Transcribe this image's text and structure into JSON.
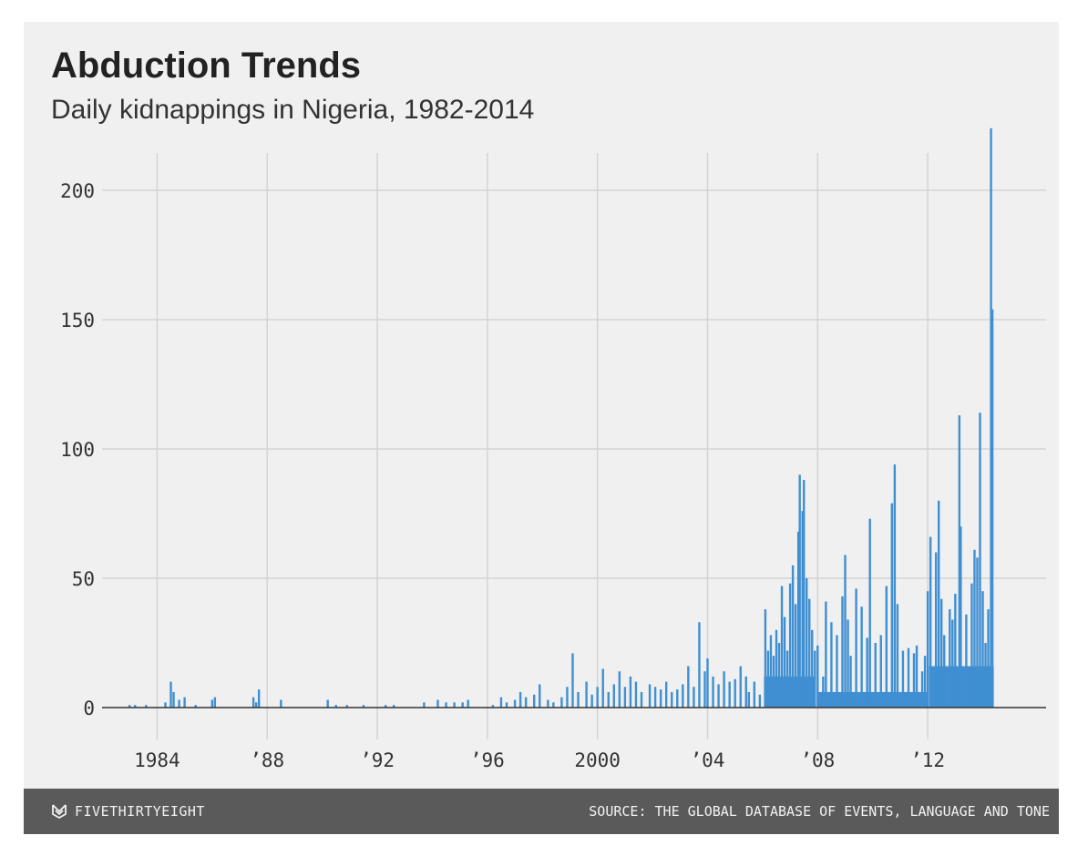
{
  "footer": {
    "brand": "FIVETHIRTYEIGHT",
    "brand_icon": "fivethirtyeight-logo-icon",
    "source": "SOURCE: THE GLOBAL DATABASE OF EVENTS, LANGUAGE AND TONE"
  },
  "colors": {
    "background": "#f0f0f0",
    "bar": "#3f8fd2",
    "grid": "#d4d4d4",
    "footer": "#5a5a5a"
  },
  "chart_data": {
    "type": "bar",
    "title": "Abduction Trends",
    "subtitle": "Daily kidnappings in Nigeria, 1982-2014",
    "xlabel": "",
    "ylabel": "",
    "xlim": [
      1982.0,
      2016.3
    ],
    "ylim": [
      0,
      220
    ],
    "grid": true,
    "x_ticks": [
      1984,
      1988,
      1992,
      1996,
      2000,
      2004,
      2008,
      2012
    ],
    "x_tick_labels": [
      "1984",
      "’88",
      "’92",
      "’96",
      "2000",
      "’04",
      "’08",
      "’12"
    ],
    "y_ticks": [
      0,
      50,
      100,
      150,
      200
    ],
    "y_tick_labels": [
      "0",
      "50",
      "100",
      "150",
      "200"
    ],
    "series": [
      {
        "values": [
          [
            1983.0,
            1
          ],
          [
            1983.2,
            1
          ],
          [
            1983.6,
            1
          ],
          [
            1984.3,
            2
          ],
          [
            1984.5,
            10
          ],
          [
            1984.6,
            6
          ],
          [
            1984.8,
            3
          ],
          [
            1985.0,
            4
          ],
          [
            1985.4,
            1
          ],
          [
            1986.0,
            3
          ],
          [
            1986.1,
            4
          ],
          [
            1987.5,
            4
          ],
          [
            1987.6,
            2
          ],
          [
            1987.7,
            7
          ],
          [
            1988.5,
            3
          ],
          [
            1990.2,
            3
          ],
          [
            1990.5,
            1
          ],
          [
            1990.9,
            1
          ],
          [
            1991.5,
            1
          ],
          [
            1992.3,
            1
          ],
          [
            1992.6,
            1
          ],
          [
            1993.7,
            2
          ],
          [
            1994.2,
            3
          ],
          [
            1994.5,
            2
          ],
          [
            1994.8,
            2
          ],
          [
            1995.1,
            2
          ],
          [
            1995.3,
            3
          ],
          [
            1996.2,
            1
          ],
          [
            1996.5,
            4
          ],
          [
            1996.7,
            2
          ],
          [
            1997.0,
            3
          ],
          [
            1997.2,
            6
          ],
          [
            1997.4,
            4
          ],
          [
            1997.7,
            5
          ],
          [
            1997.9,
            9
          ],
          [
            1998.2,
            3
          ],
          [
            1998.4,
            2
          ],
          [
            1998.7,
            4
          ],
          [
            1998.9,
            8
          ],
          [
            1999.1,
            21
          ],
          [
            1999.3,
            6
          ],
          [
            1999.6,
            10
          ],
          [
            1999.8,
            5
          ],
          [
            2000.0,
            8
          ],
          [
            2000.2,
            15
          ],
          [
            2000.4,
            6
          ],
          [
            2000.6,
            9
          ],
          [
            2000.8,
            14
          ],
          [
            2001.0,
            8
          ],
          [
            2001.2,
            12
          ],
          [
            2001.4,
            10
          ],
          [
            2001.6,
            6
          ],
          [
            2001.9,
            9
          ],
          [
            2002.1,
            8
          ],
          [
            2002.3,
            7
          ],
          [
            2002.5,
            10
          ],
          [
            2002.7,
            6
          ],
          [
            2002.9,
            7
          ],
          [
            2003.1,
            9
          ],
          [
            2003.3,
            16
          ],
          [
            2003.5,
            8
          ],
          [
            2003.7,
            33
          ],
          [
            2003.9,
            14
          ],
          [
            2004.0,
            19
          ],
          [
            2004.2,
            12
          ],
          [
            2004.4,
            9
          ],
          [
            2004.6,
            14
          ],
          [
            2004.8,
            10
          ],
          [
            2005.0,
            11
          ],
          [
            2005.2,
            16
          ],
          [
            2005.4,
            12
          ],
          [
            2005.5,
            6
          ],
          [
            2005.7,
            10
          ],
          [
            2005.9,
            5
          ],
          [
            2006.1,
            38
          ],
          [
            2006.2,
            22
          ],
          [
            2006.3,
            28
          ],
          [
            2006.4,
            20
          ],
          [
            2006.5,
            30
          ],
          [
            2006.6,
            25
          ],
          [
            2006.7,
            47
          ],
          [
            2006.8,
            35
          ],
          [
            2006.9,
            22
          ],
          [
            2007.0,
            48
          ],
          [
            2007.1,
            55
          ],
          [
            2007.2,
            40
          ],
          [
            2007.3,
            68
          ],
          [
            2007.35,
            90
          ],
          [
            2007.45,
            76
          ],
          [
            2007.5,
            88
          ],
          [
            2007.6,
            50
          ],
          [
            2007.7,
            42
          ],
          [
            2007.8,
            30
          ],
          [
            2007.9,
            22
          ],
          [
            2008.0,
            24
          ],
          [
            2008.2,
            12
          ],
          [
            2008.3,
            41
          ],
          [
            2008.5,
            33
          ],
          [
            2008.7,
            28
          ],
          [
            2008.9,
            43
          ],
          [
            2009.0,
            59
          ],
          [
            2009.1,
            34
          ],
          [
            2009.2,
            20
          ],
          [
            2009.4,
            46
          ],
          [
            2009.6,
            39
          ],
          [
            2009.8,
            27
          ],
          [
            2009.9,
            73
          ],
          [
            2010.1,
            25
          ],
          [
            2010.3,
            28
          ],
          [
            2010.5,
            47
          ],
          [
            2010.7,
            79
          ],
          [
            2010.8,
            94
          ],
          [
            2010.9,
            40
          ],
          [
            2011.1,
            22
          ],
          [
            2011.3,
            23
          ],
          [
            2011.5,
            21
          ],
          [
            2011.6,
            24
          ],
          [
            2011.8,
            14
          ],
          [
            2011.9,
            20
          ],
          [
            2012.0,
            45
          ],
          [
            2012.1,
            66
          ],
          [
            2012.3,
            60
          ],
          [
            2012.4,
            80
          ],
          [
            2012.5,
            42
          ],
          [
            2012.6,
            28
          ],
          [
            2012.8,
            38
          ],
          [
            2012.9,
            34
          ],
          [
            2013.0,
            44
          ],
          [
            2013.15,
            113
          ],
          [
            2013.2,
            70
          ],
          [
            2013.4,
            36
          ],
          [
            2013.6,
            48
          ],
          [
            2013.7,
            61
          ],
          [
            2013.8,
            58
          ],
          [
            2013.9,
            114
          ],
          [
            2014.0,
            45
          ],
          [
            2014.1,
            25
          ],
          [
            2014.2,
            38
          ],
          [
            2014.3,
            224
          ],
          [
            2014.35,
            154
          ]
        ]
      }
    ]
  }
}
